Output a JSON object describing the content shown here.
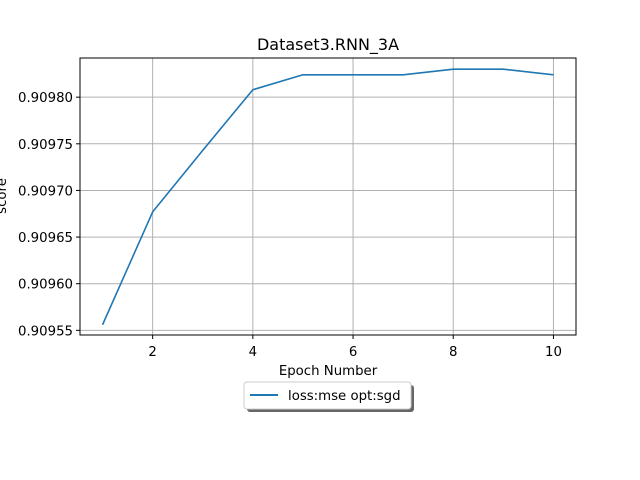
{
  "chart_data": {
    "type": "line",
    "title": "Dataset3.RNN_3A",
    "xlabel": "Epoch Number",
    "ylabel": "score",
    "xlim": [
      0.55,
      10.45
    ],
    "ylim": [
      0.909545,
      0.909842
    ],
    "xticks": [
      2,
      4,
      6,
      8,
      10
    ],
    "yticks": [
      0.90955,
      0.9096,
      0.90965,
      0.9097,
      0.90975,
      0.9098
    ],
    "ytick_labels": [
      "0.90955",
      "0.90960",
      "0.90965",
      "0.90970",
      "0.90975",
      "0.90980"
    ],
    "grid": true,
    "legend_position": "below the plot, centered",
    "series": [
      {
        "name": "loss:mse opt:sgd",
        "color": "#1f77b4",
        "x": [
          1,
          2,
          3,
          4,
          5,
          6,
          7,
          8,
          9,
          10
        ],
        "y": [
          0.909556,
          0.909677,
          0.909743,
          0.909808,
          0.909824,
          0.909824,
          0.909824,
          0.90983,
          0.90983,
          0.909824
        ]
      }
    ]
  }
}
